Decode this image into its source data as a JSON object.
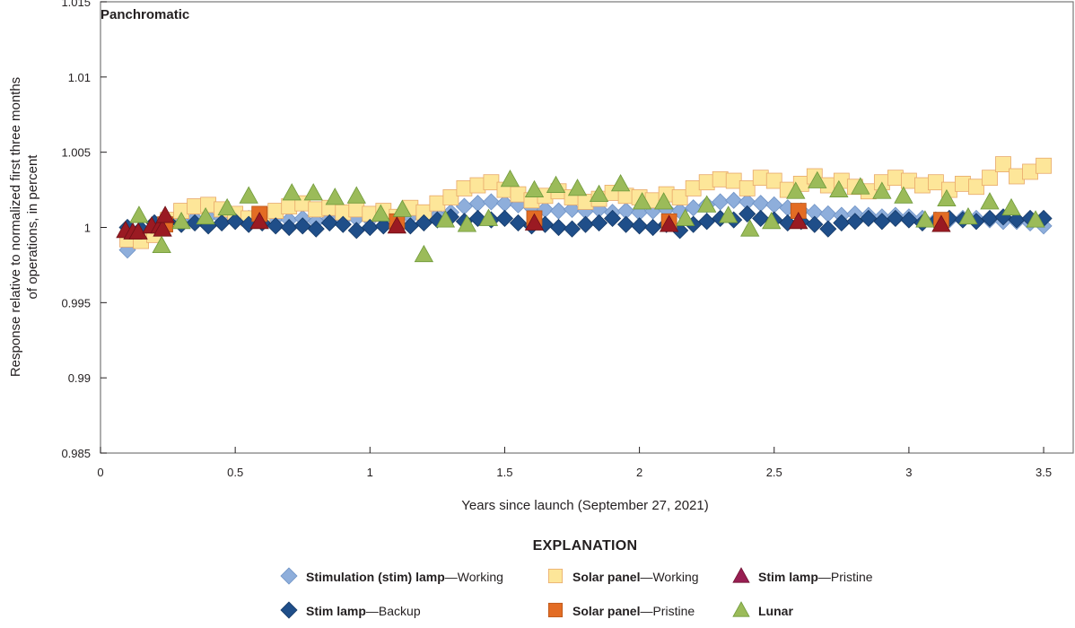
{
  "chart_data": {
    "type": "scatter",
    "title": "Panchromatic",
    "xlabel": "Years since launch (September 27, 2021)",
    "ylabel": [
      "Response relative to normalized first three months",
      "of operations, in percent"
    ],
    "xlim": [
      0,
      3.6
    ],
    "ylim": [
      0.985,
      1.015
    ],
    "xticks": [
      "0",
      "0.5",
      "1",
      "1.5",
      "2",
      "2.5",
      "3",
      "3.5"
    ],
    "yticks": [
      "0.985",
      "0.99",
      "0.995",
      "1",
      "1.005",
      "1.01",
      "1.015"
    ],
    "grid": false,
    "legend": {
      "title": "EXPLANATION",
      "placement": "bottom",
      "items": [
        {
          "bold": "Stimulation (stim) lamp",
          "rest": "—Working"
        },
        {
          "bold": "Solar panel",
          "rest": "—Working"
        },
        {
          "bold": "Stim lamp",
          "rest": "—Pristine"
        },
        {
          "bold": "Stim lamp",
          "rest": "—Backup"
        },
        {
          "bold": "Solar panel",
          "rest": "—Pristine"
        },
        {
          "bold": "Lunar",
          "rest": ""
        }
      ]
    },
    "series": [
      {
        "name": "Stimulation (stim) lamp—Working",
        "marker": "diamond",
        "color": "#8eaedb",
        "stroke": "#6f93c6",
        "points": [
          [
            0.1,
            0.9985
          ],
          [
            0.15,
            0.9992
          ],
          [
            0.2,
            1.0003
          ],
          [
            0.25,
            1.0003
          ],
          [
            0.3,
            1.0005
          ],
          [
            0.35,
            1.0006
          ],
          [
            0.4,
            1.0007
          ],
          [
            0.45,
            1.0006
          ],
          [
            0.5,
            1.0005
          ],
          [
            0.55,
            1.0006
          ],
          [
            0.6,
            1.0005
          ],
          [
            0.65,
            1.0006
          ],
          [
            0.7,
            1.0005
          ],
          [
            0.75,
            1.0006
          ],
          [
            0.8,
            1.0004
          ],
          [
            0.85,
            1.0006
          ],
          [
            0.9,
            1.0005
          ],
          [
            0.95,
            1.0006
          ],
          [
            1.0,
            1.0005
          ],
          [
            1.05,
            1.0006
          ],
          [
            1.1,
            1.0004
          ],
          [
            1.15,
            1.0007
          ],
          [
            1.2,
            1.0006
          ],
          [
            1.25,
            1.0008
          ],
          [
            1.3,
            1.001
          ],
          [
            1.35,
            1.0014
          ],
          [
            1.4,
            1.0016
          ],
          [
            1.45,
            1.0017
          ],
          [
            1.5,
            1.0016
          ],
          [
            1.55,
            1.0015
          ],
          [
            1.6,
            1.0013
          ],
          [
            1.65,
            1.0012
          ],
          [
            1.7,
            1.0011
          ],
          [
            1.75,
            1.0012
          ],
          [
            1.8,
            1.0011
          ],
          [
            1.85,
            1.0012
          ],
          [
            1.9,
            1.001
          ],
          [
            1.95,
            1.0011
          ],
          [
            2.0,
            1.001
          ],
          [
            2.05,
            1.0011
          ],
          [
            2.1,
            1.0012
          ],
          [
            2.15,
            1.0011
          ],
          [
            2.2,
            1.0013
          ],
          [
            2.25,
            1.0015
          ],
          [
            2.3,
            1.0017
          ],
          [
            2.35,
            1.0018
          ],
          [
            2.4,
            1.0017
          ],
          [
            2.45,
            1.0016
          ],
          [
            2.5,
            1.0015
          ],
          [
            2.55,
            1.0013
          ],
          [
            2.6,
            1.0011
          ],
          [
            2.65,
            1.001
          ],
          [
            2.7,
            1.0009
          ],
          [
            2.75,
            1.0008
          ],
          [
            2.8,
            1.0009
          ],
          [
            2.85,
            1.0008
          ],
          [
            2.9,
            1.0007
          ],
          [
            2.95,
            1.0008
          ],
          [
            3.0,
            1.0007
          ],
          [
            3.05,
            1.0006
          ],
          [
            3.1,
            1.0005
          ],
          [
            3.15,
            1.0005
          ],
          [
            3.2,
            1.0006
          ],
          [
            3.25,
            1.0006
          ],
          [
            3.3,
            1.0005
          ],
          [
            3.35,
            1.0004
          ],
          [
            3.4,
            1.0004
          ],
          [
            3.45,
            1.0003
          ],
          [
            3.5,
            1.0001
          ]
        ]
      },
      {
        "name": "Solar panel—Working",
        "marker": "square",
        "color": "#fde699",
        "stroke": "#e8a86a",
        "points": [
          [
            0.1,
            0.9992
          ],
          [
            0.15,
            0.9991
          ],
          [
            0.2,
            0.9995
          ],
          [
            0.25,
            1.0005
          ],
          [
            0.3,
            1.0011
          ],
          [
            0.35,
            1.0014
          ],
          [
            0.4,
            1.0015
          ],
          [
            0.45,
            1.0012
          ],
          [
            0.5,
            1.0009
          ],
          [
            0.55,
            1.0006
          ],
          [
            0.6,
            1.0008
          ],
          [
            0.65,
            1.0011
          ],
          [
            0.7,
            1.0014
          ],
          [
            0.75,
            1.0016
          ],
          [
            0.8,
            1.0012
          ],
          [
            0.85,
            1.0013
          ],
          [
            0.9,
            1.001
          ],
          [
            0.95,
            1.0012
          ],
          [
            1.0,
            1.0009
          ],
          [
            1.05,
            1.0011
          ],
          [
            1.1,
            1.0007
          ],
          [
            1.15,
            1.0013
          ],
          [
            1.2,
            1.001
          ],
          [
            1.25,
            1.0016
          ],
          [
            1.3,
            1.002
          ],
          [
            1.35,
            1.0026
          ],
          [
            1.4,
            1.0028
          ],
          [
            1.45,
            1.003
          ],
          [
            1.5,
            1.0025
          ],
          [
            1.55,
            1.0022
          ],
          [
            1.6,
            1.0018
          ],
          [
            1.65,
            1.0021
          ],
          [
            1.7,
            1.0024
          ],
          [
            1.75,
            1.002
          ],
          [
            1.8,
            1.0017
          ],
          [
            1.85,
            1.0019
          ],
          [
            1.9,
            1.0023
          ],
          [
            1.95,
            1.0021
          ],
          [
            2.0,
            1.002
          ],
          [
            2.05,
            1.0018
          ],
          [
            2.1,
            1.0022
          ],
          [
            2.15,
            1.002
          ],
          [
            2.2,
            1.0026
          ],
          [
            2.25,
            1.003
          ],
          [
            2.3,
            1.0032
          ],
          [
            2.35,
            1.0031
          ],
          [
            2.4,
            1.0026
          ],
          [
            2.45,
            1.0033
          ],
          [
            2.5,
            1.0031
          ],
          [
            2.55,
            1.0025
          ],
          [
            2.6,
            1.0029
          ],
          [
            2.65,
            1.0034
          ],
          [
            2.7,
            1.0028
          ],
          [
            2.75,
            1.0031
          ],
          [
            2.8,
            1.0027
          ],
          [
            2.85,
            1.0024
          ],
          [
            2.9,
            1.003
          ],
          [
            2.95,
            1.0033
          ],
          [
            3.0,
            1.0031
          ],
          [
            3.05,
            1.0028
          ],
          [
            3.1,
            1.003
          ],
          [
            3.15,
            1.0025
          ],
          [
            3.2,
            1.0029
          ],
          [
            3.25,
            1.0027
          ],
          [
            3.3,
            1.0033
          ],
          [
            3.35,
            1.0042
          ],
          [
            3.4,
            1.0034
          ],
          [
            3.45,
            1.0037
          ],
          [
            3.5,
            1.0041
          ]
        ]
      },
      {
        "name": "Stim lamp—Backup",
        "marker": "diamond",
        "color": "#1f4e89",
        "stroke": "#163a68",
        "points": [
          [
            0.1,
            1.0
          ],
          [
            0.15,
            0.9999
          ],
          [
            0.2,
            1.0003
          ],
          [
            0.25,
            1.0004
          ],
          [
            0.3,
            1.0002
          ],
          [
            0.35,
            1.0003
          ],
          [
            0.4,
            1.0001
          ],
          [
            0.45,
            1.0003
          ],
          [
            0.5,
            1.0004
          ],
          [
            0.55,
            1.0002
          ],
          [
            0.6,
            1.0003
          ],
          [
            0.65,
            1.0001
          ],
          [
            0.7,
            1.0
          ],
          [
            0.75,
            1.0001
          ],
          [
            0.8,
            0.9999
          ],
          [
            0.85,
            1.0003
          ],
          [
            0.9,
            1.0002
          ],
          [
            0.95,
            0.9998
          ],
          [
            1.0,
            1.0
          ],
          [
            1.05,
            1.0001
          ],
          [
            1.1,
            1.0002
          ],
          [
            1.15,
            1.0001
          ],
          [
            1.2,
            1.0003
          ],
          [
            1.25,
            1.0005
          ],
          [
            1.3,
            1.0007
          ],
          [
            1.35,
            1.0004
          ],
          [
            1.4,
            1.0006
          ],
          [
            1.45,
            1.0005
          ],
          [
            1.5,
            1.0006
          ],
          [
            1.55,
            1.0003
          ],
          [
            1.6,
            1.0001
          ],
          [
            1.65,
            1.0002
          ],
          [
            1.7,
            1.0
          ],
          [
            1.75,
            0.9999
          ],
          [
            1.8,
            1.0002
          ],
          [
            1.85,
            1.0003
          ],
          [
            1.9,
            1.0006
          ],
          [
            1.95,
            1.0002
          ],
          [
            2.0,
            1.0001
          ],
          [
            2.05,
            1.0
          ],
          [
            2.1,
            1.0002
          ],
          [
            2.15,
            0.9998
          ],
          [
            2.2,
            1.0002
          ],
          [
            2.25,
            1.0004
          ],
          [
            2.3,
            1.0006
          ],
          [
            2.35,
            1.0005
          ],
          [
            2.4,
            1.0009
          ],
          [
            2.45,
            1.0006
          ],
          [
            2.5,
            1.0005
          ],
          [
            2.55,
            1.0003
          ],
          [
            2.6,
            1.0004
          ],
          [
            2.65,
            1.0002
          ],
          [
            2.7,
            0.9999
          ],
          [
            2.75,
            1.0003
          ],
          [
            2.8,
            1.0004
          ],
          [
            2.85,
            1.0006
          ],
          [
            2.9,
            1.0004
          ],
          [
            2.95,
            1.0006
          ],
          [
            3.0,
            1.0005
          ],
          [
            3.05,
            1.0003
          ],
          [
            3.1,
            1.0004
          ],
          [
            3.15,
            1.0006
          ],
          [
            3.2,
            1.0005
          ],
          [
            3.25,
            1.0004
          ],
          [
            3.3,
            1.0006
          ],
          [
            3.35,
            1.0007
          ],
          [
            3.4,
            1.0005
          ],
          [
            3.45,
            1.0006
          ],
          [
            3.5,
            1.0006
          ]
        ]
      },
      {
        "name": "Solar panel—Pristine",
        "marker": "square",
        "color": "#e36c24",
        "stroke": "#b8561a",
        "points": [
          [
            0.24,
            1.0002
          ],
          [
            0.59,
            1.0009
          ],
          [
            1.1,
            1.0004
          ],
          [
            1.61,
            1.0006
          ],
          [
            2.11,
            1.0004
          ],
          [
            2.59,
            1.0011
          ],
          [
            3.12,
            1.0005
          ]
        ]
      },
      {
        "name": "Stim lamp—Pristine",
        "marker": "triangle",
        "color": "#9a1a22",
        "stroke": "#6e1016",
        "points": [
          [
            0.093,
            0.9998
          ],
          [
            0.12,
            0.9997
          ],
          [
            0.14,
            0.9997
          ],
          [
            0.19,
            1.0001
          ],
          [
            0.22,
            1.0001
          ],
          [
            0.23,
            0.9999
          ],
          [
            0.24,
            1.0008
          ],
          [
            0.59,
            1.0004
          ],
          [
            1.1,
            1.0001
          ],
          [
            1.61,
            1.0003
          ],
          [
            2.11,
            1.0002
          ],
          [
            2.59,
            1.0004
          ],
          [
            3.12,
            1.0002
          ]
        ]
      },
      {
        "name": "Lunar",
        "marker": "triangle",
        "color": "#9bbb59",
        "stroke": "#6f9a3a",
        "points": [
          [
            0.143,
            1.0008
          ],
          [
            0.227,
            0.9988
          ],
          [
            0.3,
            1.0004
          ],
          [
            0.39,
            1.0007
          ],
          [
            0.47,
            1.0013
          ],
          [
            0.55,
            1.0021
          ],
          [
            0.71,
            1.0023
          ],
          [
            0.79,
            1.0023
          ],
          [
            0.87,
            1.002
          ],
          [
            0.95,
            1.0021
          ],
          [
            1.04,
            1.0009
          ],
          [
            1.12,
            1.0012
          ],
          [
            1.2,
            0.9982
          ],
          [
            1.28,
            1.0005
          ],
          [
            1.36,
            1.0002
          ],
          [
            1.44,
            1.0006
          ],
          [
            1.52,
            1.0032
          ],
          [
            1.61,
            1.0025
          ],
          [
            1.69,
            1.0028
          ],
          [
            1.77,
            1.0026
          ],
          [
            1.85,
            1.0022
          ],
          [
            1.93,
            1.0029
          ],
          [
            2.01,
            1.0017
          ],
          [
            2.09,
            1.0017
          ],
          [
            2.17,
            1.0006
          ],
          [
            2.25,
            1.0015
          ],
          [
            2.33,
            1.0008
          ],
          [
            2.41,
            0.9999
          ],
          [
            2.49,
            1.0004
          ],
          [
            2.58,
            1.0024
          ],
          [
            2.66,
            1.0031
          ],
          [
            2.74,
            1.0025
          ],
          [
            2.82,
            1.0027
          ],
          [
            2.9,
            1.0024
          ],
          [
            2.98,
            1.0021
          ],
          [
            3.06,
            1.0005
          ],
          [
            3.14,
            1.0019
          ],
          [
            3.22,
            1.0007
          ],
          [
            3.3,
            1.0017
          ],
          [
            3.38,
            1.0013
          ],
          [
            3.47,
            1.0005
          ]
        ]
      }
    ],
    "legend_marker_colors": [
      "#8eaedb",
      "#fde699",
      "#981e52",
      "#1f4e89",
      "#e36c24",
      "#9bbb59"
    ]
  }
}
